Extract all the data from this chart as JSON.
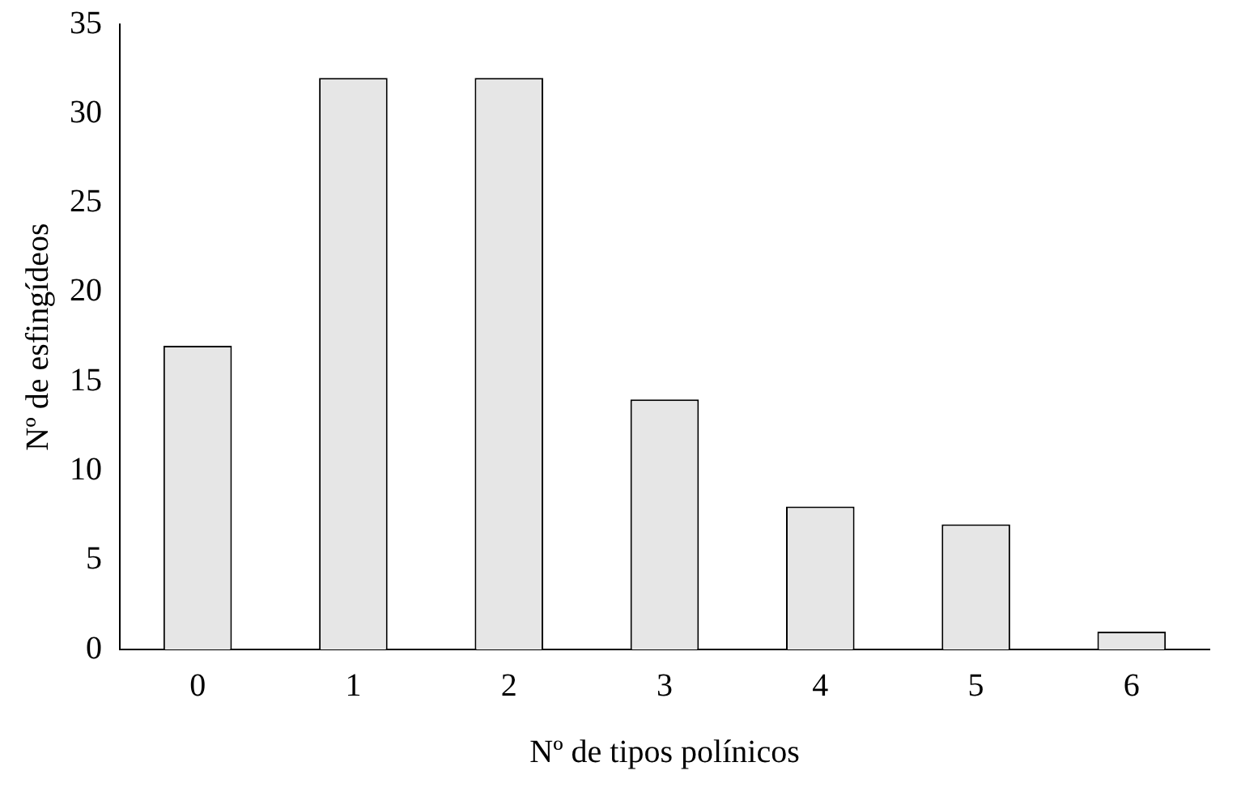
{
  "chart_data": {
    "type": "bar",
    "xlabel": "Nº de tipos polínicos",
    "ylabel": "Nº de esfingídeos",
    "categories": [
      "0",
      "1",
      "2",
      "3",
      "4",
      "5",
      "6"
    ],
    "values": [
      17,
      32,
      32,
      14,
      8,
      7,
      1
    ],
    "color": "#e6e6e6",
    "ylim": [
      0,
      35
    ],
    "yticks": [
      0,
      5,
      10,
      15,
      20,
      25,
      30,
      35
    ],
    "grid": false,
    "legend": false
  }
}
